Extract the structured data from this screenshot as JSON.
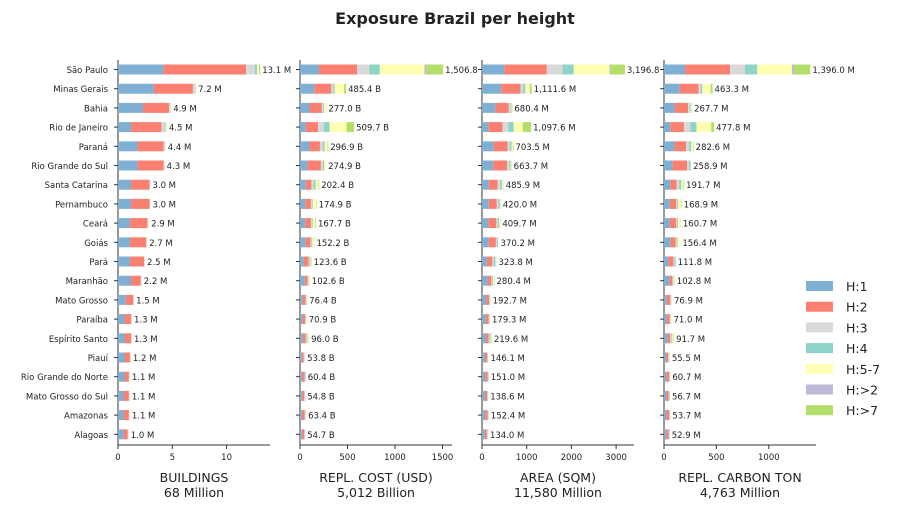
{
  "title": "Exposure Brazil per height",
  "states": [
    "São Paulo",
    "Minas Gerais",
    "Bahia",
    "Rio de Janeiro",
    "Paraná",
    "Rio Grande do Sul",
    "Santa Catarina",
    "Pernambuco",
    "Ceará",
    "Goiás",
    "Pará",
    "Maranhão",
    "Mato Grosso",
    "Paraíba",
    "Espírito Santo",
    "Piauí",
    "Rio Grande do Norte",
    "Mato Grosso do Sul",
    "Amazonas",
    "Alagoas"
  ],
  "legend": [
    {
      "label": "H:1",
      "color": "#7fb0d3"
    },
    {
      "label": "H:2",
      "color": "#fa8072"
    },
    {
      "label": "H:3",
      "color": "#d9d9d9"
    },
    {
      "label": "H:4",
      "color": "#8dd3c7"
    },
    {
      "label": "H:5-7",
      "color": "#ffffb3"
    },
    {
      "label": "H:>2",
      "color": "#bebada"
    },
    {
      "label": "H:>7",
      "color": "#b3de69"
    }
  ],
  "chart_data": [
    {
      "type": "bar",
      "xlabel": "BUILDINGS",
      "total": "68 Million",
      "xlim": [
        0,
        14
      ],
      "xticks": [
        0,
        5,
        10
      ],
      "series": [
        {
          "name": "H:1",
          "values": [
            4.2,
            3.3,
            2.3,
            1.2,
            1.8,
            1.8,
            1.2,
            1.2,
            1.1,
            1.1,
            1.1,
            1.2,
            0.7,
            0.6,
            0.6,
            0.6,
            0.6,
            0.5,
            0.5,
            0.5
          ]
        },
        {
          "name": "H:2",
          "values": [
            7.6,
            3.6,
            2.4,
            2.8,
            2.4,
            2.4,
            1.7,
            1.7,
            1.6,
            1.5,
            1.3,
            0.9,
            0.7,
            0.6,
            0.6,
            0.5,
            0.4,
            0.5,
            0.5,
            0.4
          ]
        },
        {
          "name": "H:3",
          "values": [
            0.8,
            0.2,
            0.1,
            0.3,
            0.1,
            0.1,
            0.05,
            0.05,
            0.1,
            0.05,
            0.05,
            0.05,
            0.05,
            0.05,
            0.05,
            0.05,
            0.05,
            0.05,
            0.05,
            0.05
          ]
        },
        {
          "name": "H:4",
          "values": [
            0.2,
            0.05,
            0.05,
            0.1,
            0.05,
            0.0,
            0.02,
            0.02,
            0.02,
            0.02,
            0.02,
            0.02,
            0.02,
            0.02,
            0.02,
            0.02,
            0.02,
            0.02,
            0.02,
            0.02
          ]
        },
        {
          "name": "H:5-7",
          "values": [
            0.2,
            0.05,
            0.05,
            0.1,
            0.05,
            0.0,
            0.02,
            0.02,
            0.05,
            0.02,
            0.02,
            0.02,
            0.02,
            0.02,
            0.02,
            0.02,
            0.02,
            0.02,
            0.02,
            0.02
          ]
        },
        {
          "name": "H:>2",
          "values": [
            0.0,
            0,
            0,
            0,
            0,
            0,
            0,
            0,
            0,
            0,
            0,
            0,
            0,
            0,
            0,
            0,
            0,
            0,
            0,
            0
          ]
        },
        {
          "name": "H:>7",
          "values": [
            0.1,
            0.0,
            0,
            0,
            0,
            0,
            0,
            0,
            0,
            0,
            0,
            0,
            0,
            0,
            0,
            0,
            0,
            0,
            0,
            0
          ]
        }
      ],
      "labels": [
        "13.1 M",
        "7.2 M",
        "4.9 M",
        "4.5 M",
        "4.4 M",
        "4.3 M",
        "3.0 M",
        "3.0 M",
        "2.9 M",
        "2.7 M",
        "2.5 M",
        "2.2 M",
        "1.5 M",
        "1.3 M",
        "1.3 M",
        "1.2 M",
        "1.1 M",
        "1.1 M",
        "1.1 M",
        "1.0 M"
      ]
    },
    {
      "type": "bar",
      "xlabel": "REPL. COST (USD)",
      "total": "5,012 Billion",
      "xlim": [
        0,
        1600
      ],
      "xticks": [
        0,
        500,
        1000,
        1500
      ],
      "series": [
        {
          "name": "H:1",
          "values": [
            200,
            150,
            100,
            60,
            100,
            80,
            60,
            55,
            55,
            60,
            40,
            50,
            25,
            25,
            30,
            20,
            20,
            20,
            20,
            20
          ]
        },
        {
          "name": "H:2",
          "values": [
            400,
            180,
            130,
            130,
            110,
            140,
            60,
            60,
            60,
            50,
            50,
            30,
            35,
            30,
            30,
            20,
            30,
            25,
            30,
            25
          ]
        },
        {
          "name": "H:3",
          "values": [
            130,
            20,
            15,
            60,
            30,
            20,
            25,
            10,
            10,
            10,
            10,
            5,
            5,
            5,
            10,
            5,
            5,
            5,
            5,
            5
          ]
        },
        {
          "name": "H:4",
          "values": [
            110,
            15,
            10,
            60,
            20,
            15,
            20,
            10,
            10,
            10,
            10,
            5,
            5,
            5,
            10,
            5,
            5,
            5,
            5,
            5
          ]
        },
        {
          "name": "H:5-7",
          "values": [
            470,
            100,
            20,
            180,
            30,
            20,
            30,
            35,
            25,
            20,
            10,
            10,
            5,
            5,
            15,
            3,
            0,
            0,
            3,
            0
          ]
        },
        {
          "name": "H:>2",
          "values": [
            20,
            0,
            0,
            0,
            0,
            0,
            0,
            0,
            0,
            0,
            0,
            0,
            0,
            0,
            0,
            0,
            0,
            0,
            0,
            0
          ]
        },
        {
          "name": "H:>7",
          "values": [
            177,
            20,
            2,
            80,
            7,
            0,
            7,
            5,
            8,
            2,
            4,
            3,
            1,
            1,
            1,
            1,
            0,
            0,
            1,
            0
          ]
        }
      ],
      "labels": [
        "1,506.8",
        "485.4 B",
        "277.0 B",
        "509.7 B",
        "296.9 B",
        "274.9 B",
        "202.4 B",
        "174.9 B",
        "167.7 B",
        "152.2 B",
        "123.6 B",
        "102.6 B",
        "76.4 B",
        "70.9 B",
        "96.0 B",
        "53.8 B",
        "60.4 B",
        "54.8 B",
        "63.4 B",
        "54.7 B"
      ]
    },
    {
      "type": "bar",
      "xlabel": "AREA (SQM)",
      "total": "11,580 Million",
      "xlim": [
        0,
        3400
      ],
      "xticks": [
        0,
        1000,
        2000,
        3000
      ],
      "series": [
        {
          "name": "H:1",
          "values": [
            500,
            430,
            300,
            140,
            260,
            250,
            150,
            150,
            140,
            150,
            110,
            120,
            90,
            80,
            80,
            65,
            70,
            65,
            70,
            60
          ]
        },
        {
          "name": "H:2",
          "values": [
            950,
            430,
            300,
            320,
            310,
            310,
            200,
            180,
            180,
            160,
            120,
            90,
            70,
            70,
            70,
            50,
            60,
            50,
            60,
            50
          ]
        },
        {
          "name": "H:3",
          "values": [
            350,
            60,
            40,
            130,
            50,
            50,
            60,
            40,
            30,
            30,
            30,
            20,
            10,
            10,
            20,
            10,
            10,
            10,
            10,
            10
          ]
        },
        {
          "name": "H:4",
          "values": [
            250,
            50,
            20,
            120,
            40,
            30,
            40,
            30,
            30,
            20,
            40,
            20,
            10,
            10,
            20,
            10,
            10,
            10,
            10,
            10
          ]
        },
        {
          "name": "H:5-7",
          "values": [
            800,
            100,
            10,
            200,
            30,
            15,
            30,
            15,
            20,
            10,
            20,
            20,
            10,
            5,
            20,
            10,
            1,
            0,
            2,
            4
          ]
        },
        {
          "name": "H:>2",
          "values": [
            20,
            0,
            0,
            0,
            0,
            0,
            0,
            0,
            0,
            0,
            0,
            0,
            0,
            0,
            0,
            0,
            0,
            0,
            0,
            0
          ]
        },
        {
          "name": "H:>7",
          "values": [
            327,
            42,
            10,
            188,
            14,
            9,
            6,
            5,
            10,
            0,
            4,
            10,
            3,
            4,
            10,
            1,
            0,
            4,
            0,
            0
          ]
        }
      ],
      "labels": [
        "3,196.8",
        "1,111.6 M",
        "680.4 M",
        "1,097.6 M",
        "703.5 M",
        "663.7 M",
        "485.9 M",
        "420.0 M",
        "409.7 M",
        "370.2 M",
        "323.8 M",
        "280.4 M",
        "192.7 M",
        "179.3 M",
        "219.6 M",
        "146.1 M",
        "151.0 M",
        "138.6 M",
        "152.4 M",
        "134.0 M"
      ]
    },
    {
      "type": "bar",
      "xlabel": "REPL. CARBON TON",
      "total": "4,763 Million",
      "xlim": [
        0,
        1450
      ],
      "xticks": [
        0,
        500,
        1000
      ],
      "series": [
        {
          "name": "H:1",
          "values": [
            200,
            150,
            100,
            60,
            100,
            80,
            60,
            55,
            55,
            60,
            40,
            50,
            25,
            25,
            30,
            20,
            20,
            20,
            20,
            20
          ]
        },
        {
          "name": "H:2",
          "values": [
            430,
            180,
            130,
            130,
            110,
            140,
            60,
            60,
            60,
            50,
            50,
            30,
            35,
            30,
            30,
            20,
            30,
            25,
            30,
            25
          ]
        },
        {
          "name": "H:3",
          "values": [
            140,
            20,
            15,
            60,
            30,
            20,
            25,
            10,
            10,
            10,
            10,
            5,
            5,
            5,
            10,
            5,
            5,
            5,
            5,
            5
          ]
        },
        {
          "name": "H:4",
          "values": [
            120,
            15,
            10,
            60,
            20,
            15,
            20,
            10,
            10,
            10,
            10,
            5,
            5,
            5,
            10,
            5,
            5,
            5,
            5,
            5
          ]
        },
        {
          "name": "H:5-7",
          "values": [
            330,
            80,
            10,
            140,
            18,
            4,
            20,
            30,
            24,
            25,
            0,
            10,
            5,
            5,
            13,
            5,
            0,
            0,
            0,
            0
          ]
        },
        {
          "name": "H:>2",
          "values": [
            20,
            0,
            0,
            0,
            0,
            0,
            0,
            0,
            0,
            0,
            0,
            0,
            0,
            0,
            0,
            0,
            0,
            0,
            0,
            0
          ]
        },
        {
          "name": "H:>7",
          "values": [
            156,
            18,
            3,
            28,
            5,
            0,
            7,
            4,
            2,
            1,
            2,
            3,
            1,
            1,
            4,
            1,
            1,
            2,
            0,
            0
          ]
        }
      ],
      "labels": [
        "1,396.0 M",
        "463.3 M",
        "267.7 M",
        "477.8 M",
        "282.6 M",
        "258.9 M",
        "191.7 M",
        "168.9 M",
        "160.7 M",
        "156.4 M",
        "111.8 M",
        "102.8 M",
        "76.9 M",
        "71.0 M",
        "91.7 M",
        "55.5 M",
        "60.7 M",
        "56.7 M",
        "53.7 M",
        "52.9 M"
      ]
    }
  ]
}
